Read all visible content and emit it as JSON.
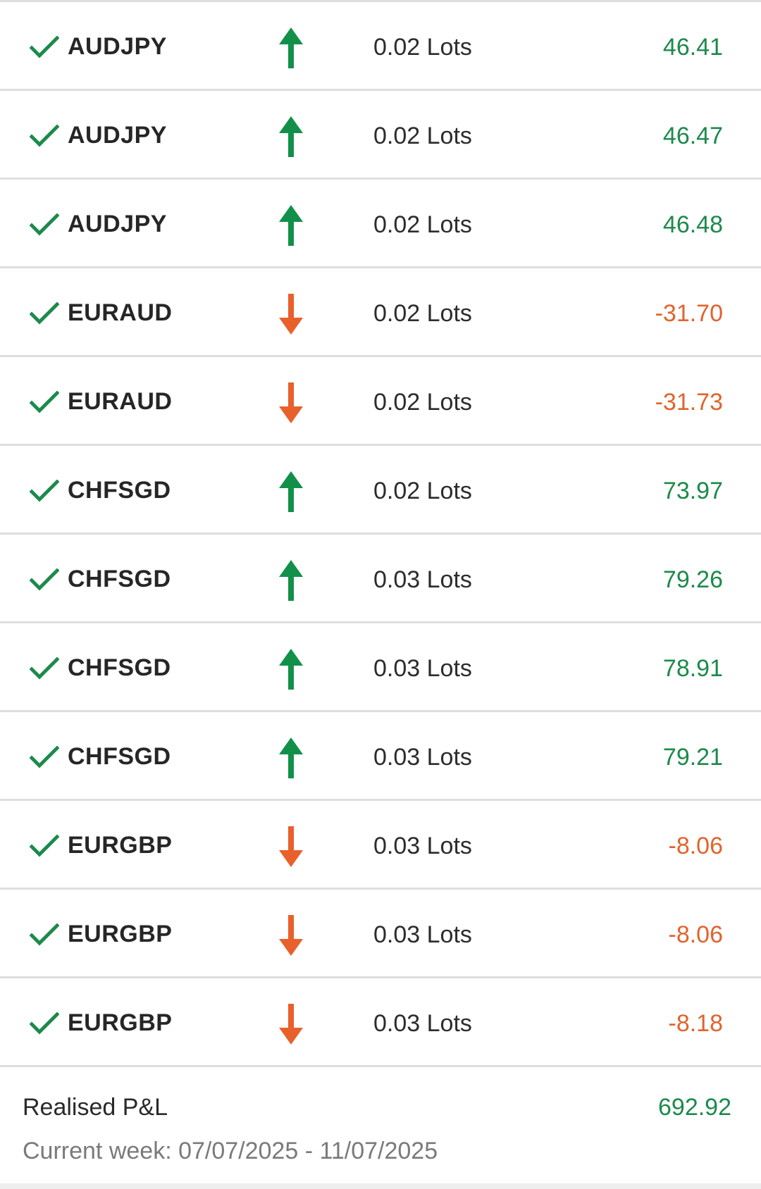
{
  "colors": {
    "positive": "#1c8a4b",
    "negative": "#e0642d",
    "check": "#1c8a4b",
    "arrow_up": "#12904a",
    "arrow_down": "#e8602c"
  },
  "trades": [
    {
      "symbol": "AUDJPY",
      "direction": "up",
      "direction_icon": "arrow-up-icon",
      "lots": "0.02 Lots",
      "pnl": "46.41",
      "sign": "pos"
    },
    {
      "symbol": "AUDJPY",
      "direction": "up",
      "direction_icon": "arrow-up-icon",
      "lots": "0.02 Lots",
      "pnl": "46.47",
      "sign": "pos"
    },
    {
      "symbol": "AUDJPY",
      "direction": "up",
      "direction_icon": "arrow-up-icon",
      "lots": "0.02 Lots",
      "pnl": "46.48",
      "sign": "pos"
    },
    {
      "symbol": "EURAUD",
      "direction": "down",
      "direction_icon": "arrow-down-icon",
      "lots": "0.02 Lots",
      "pnl": "-31.70",
      "sign": "neg"
    },
    {
      "symbol": "EURAUD",
      "direction": "down",
      "direction_icon": "arrow-down-icon",
      "lots": "0.02 Lots",
      "pnl": "-31.73",
      "sign": "neg"
    },
    {
      "symbol": "CHFSGD",
      "direction": "up",
      "direction_icon": "arrow-up-icon",
      "lots": "0.02 Lots",
      "pnl": "73.97",
      "sign": "pos"
    },
    {
      "symbol": "CHFSGD",
      "direction": "up",
      "direction_icon": "arrow-up-icon",
      "lots": "0.03 Lots",
      "pnl": "79.26",
      "sign": "pos"
    },
    {
      "symbol": "CHFSGD",
      "direction": "up",
      "direction_icon": "arrow-up-icon",
      "lots": "0.03 Lots",
      "pnl": "78.91",
      "sign": "pos"
    },
    {
      "symbol": "CHFSGD",
      "direction": "up",
      "direction_icon": "arrow-up-icon",
      "lots": "0.03 Lots",
      "pnl": "79.21",
      "sign": "pos"
    },
    {
      "symbol": "EURGBP",
      "direction": "down",
      "direction_icon": "arrow-down-icon",
      "lots": "0.03 Lots",
      "pnl": "-8.06",
      "sign": "neg"
    },
    {
      "symbol": "EURGBP",
      "direction": "down",
      "direction_icon": "arrow-down-icon",
      "lots": "0.03 Lots",
      "pnl": "-8.06",
      "sign": "neg"
    },
    {
      "symbol": "EURGBP",
      "direction": "down",
      "direction_icon": "arrow-down-icon",
      "lots": "0.03 Lots",
      "pnl": "-8.18",
      "sign": "neg"
    }
  ],
  "summary": {
    "label": "Realised P&L",
    "value": "692.92",
    "week": "Current week: 07/07/2025 - 11/07/2025"
  }
}
